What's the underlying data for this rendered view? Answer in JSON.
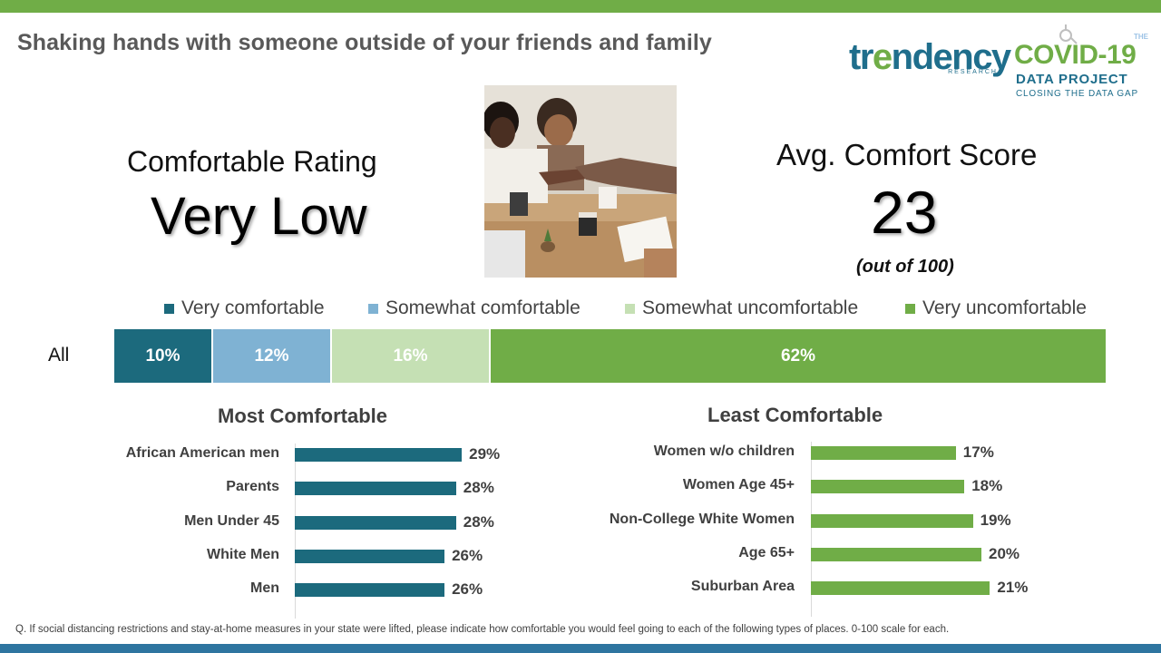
{
  "title": "Shaking hands with someone outside of your friends and family",
  "logos": {
    "trendency_word_start": "tr",
    "trendency_word_e": "e",
    "trendency_word_end": "ndency",
    "trendency_sub": "RESEARCH",
    "covid_the": "THE",
    "covid_main": "COVID-19",
    "covid_sub": "DATA PROJECT",
    "covid_tagline": "CLOSING THE DATA GAP"
  },
  "rating": {
    "label": "Comfortable Rating",
    "value": "Very Low"
  },
  "score": {
    "label": "Avg. Comfort Score",
    "value": "23",
    "note": "(out of 100)"
  },
  "colors": {
    "very_comfortable": "#1c6a7d",
    "somewhat_comfortable": "#7fb2d3",
    "somewhat_uncomfortable": "#c5e0b4",
    "very_uncomfortable": "#70ad47",
    "top_bar": "#70ad47",
    "bottom_bar": "#2e75a0"
  },
  "chart_data": [
    {
      "type": "bar",
      "orientation": "horizontal-stacked",
      "categories": [
        "All"
      ],
      "series": [
        {
          "name": "Very comfortable",
          "values": [
            10
          ],
          "label": "10%"
        },
        {
          "name": "Somewhat comfortable",
          "values": [
            12
          ],
          "label": "12%"
        },
        {
          "name": "Somewhat uncomfortable",
          "values": [
            16
          ],
          "label": "16%"
        },
        {
          "name": "Very uncomfortable",
          "values": [
            62
          ],
          "label": "62%"
        }
      ],
      "legend": "top"
    },
    {
      "type": "bar",
      "orientation": "horizontal",
      "title": "Most Comfortable",
      "categories": [
        "African American men",
        "Parents",
        "Men Under 45",
        "White Men",
        "Men"
      ],
      "values": [
        29,
        28,
        28,
        26,
        26
      ],
      "labels": [
        "29%",
        "28%",
        "28%",
        "26%",
        "26%"
      ]
    },
    {
      "type": "bar",
      "orientation": "horizontal",
      "title": "Least Comfortable",
      "categories": [
        "Women w/o children",
        "Women Age 45+",
        "Non-College White Women",
        "Age 65+",
        "Suburban Area"
      ],
      "values": [
        17,
        18,
        19,
        20,
        21
      ],
      "labels": [
        "17%",
        "18%",
        "19%",
        "20%",
        "21%"
      ]
    }
  ],
  "footnote": "Q. If social distancing restrictions and stay-at-home measures in your state were lifted, please indicate how comfortable you would feel going to each of the following types of places. 0-100 scale for each."
}
